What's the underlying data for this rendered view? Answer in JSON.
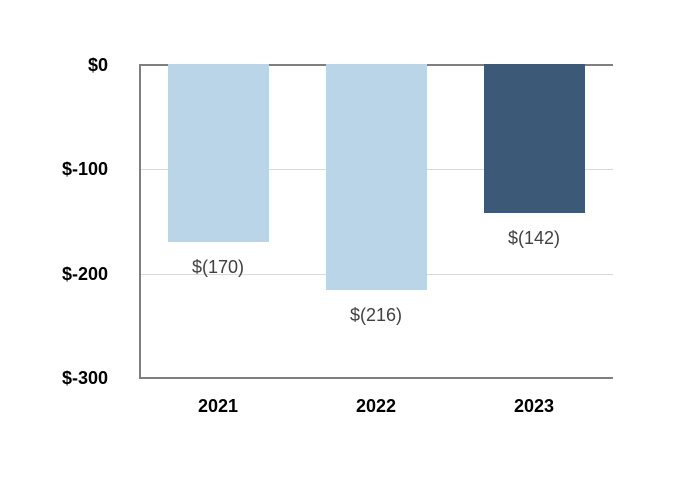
{
  "chart_data": {
    "type": "bar",
    "title": "",
    "xlabel": "",
    "ylabel": "",
    "categories": [
      "2021",
      "2022",
      "2023"
    ],
    "values": [
      -170,
      -216,
      -142
    ],
    "data_labels": [
      "$(170)",
      "$(216)",
      "$(142)"
    ],
    "bar_colors": [
      "#BAD5E8",
      "#BAD5E8",
      "#3C5A77"
    ],
    "ylim": [
      -300,
      0
    ],
    "y_ticks": [
      {
        "value": 0,
        "label": "$0"
      },
      {
        "value": -100,
        "label": "$-100"
      },
      {
        "value": -200,
        "label": "$-200"
      },
      {
        "value": -300,
        "label": "$-300"
      }
    ],
    "grid": "horizontal-interior",
    "legend": "none",
    "colors": {
      "axis_line": "#7f7f7f",
      "gridline": "#d9d9d9",
      "tick_label": "#000000",
      "data_label": "#404040",
      "background": "#ffffff"
    }
  }
}
